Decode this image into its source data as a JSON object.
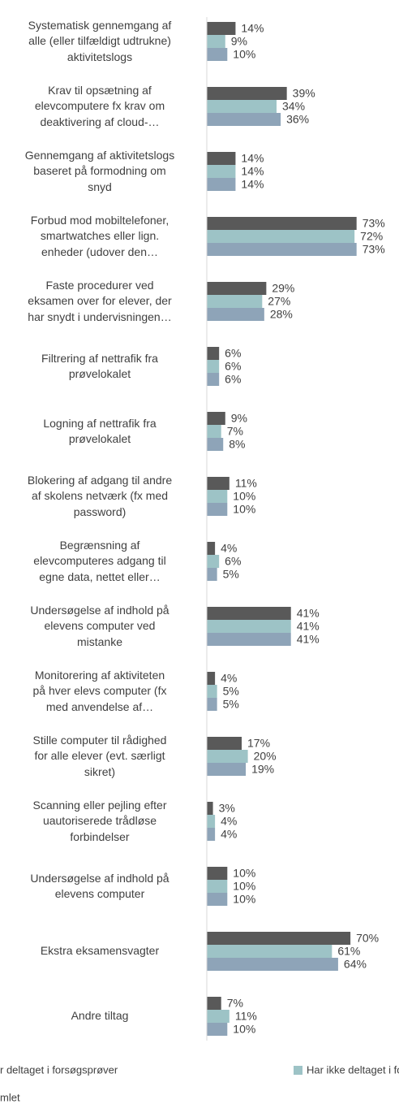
{
  "chart_data": {
    "type": "bar",
    "orientation": "horizontal",
    "categories": [
      "Systematisk gennemgang af\nalle (eller tilfældigt udtrukne)\naktivitetslogs",
      "Krav til opsætning af\nelevcomputere fx krav om\ndeaktivering af cloud-…",
      "Gennemgang af aktivitetslogs\nbaseret på formodning om\nsnyd",
      "Forbud mod mobiltelefoner,\nsmartwatches eller lign.\nenheder (udover den…",
      "Faste procedurer ved\neksamen over for elever, der\nhar snydt i undervisningen…",
      "Filtrering af nettrafik fra\nprøvelokalet",
      "Logning af nettrafik fra\nprøvelokalet",
      "Blokering af adgang til andre\naf skolens netværk (fx med\npassword)",
      "Begrænsning af\nelevcomputeres adgang til\negne data, nettet eller…",
      "Undersøgelse af indhold på\nelevens computer ved\nmistanke",
      "Monitorering af aktiviteten\npå hver elevs computer (fx\nmed anvendelse af…",
      "Stille computer til rådighed\nfor alle elever (evt. særligt\nsikret)",
      "Scanning eller pejling efter\nuautoriserede trådløse\nforbindelser",
      "Undersøgelse af indhold på\nelevens computer",
      "Ekstra eksamensvagter",
      "Andre tiltag"
    ],
    "series": [
      {
        "name": "r deltaget i forsøgsprøver",
        "color": "#595959",
        "values": [
          14,
          39,
          14,
          73,
          29,
          6,
          9,
          11,
          4,
          41,
          4,
          17,
          3,
          10,
          70,
          7
        ],
        "value_labels": [
          "14%",
          "39%",
          "14%",
          "73%",
          "29%",
          "6%",
          "9%",
          "11%",
          "4%",
          "41%",
          "4%",
          "17%",
          "3%",
          "10%",
          "70%",
          "7%"
        ]
      },
      {
        "name": "Har ikke deltaget i forsøgsprøver",
        "color": "#9dc3c6",
        "values": [
          9,
          34,
          14,
          72,
          27,
          6,
          7,
          10,
          6,
          41,
          5,
          20,
          4,
          10,
          61,
          11
        ],
        "value_labels": [
          "9%",
          "34%",
          "14%",
          "72%",
          "27%",
          "6%",
          "7%",
          "10%",
          "6%",
          "41%",
          "5%",
          "20%",
          "4%",
          "10%",
          "61%",
          "11%"
        ]
      },
      {
        "name": "mlet",
        "color": "#8ea4b8",
        "values": [
          10,
          36,
          14,
          73,
          28,
          6,
          8,
          10,
          5,
          41,
          5,
          19,
          4,
          10,
          64,
          10
        ],
        "value_labels": [
          "10%",
          "36%",
          "14%",
          "73%",
          "28%",
          "6%",
          "8%",
          "10%",
          "5%",
          "41%",
          "5%",
          "19%",
          "4%",
          "10%",
          "64%",
          "10%"
        ]
      }
    ],
    "xlim": [
      0,
      100
    ]
  }
}
